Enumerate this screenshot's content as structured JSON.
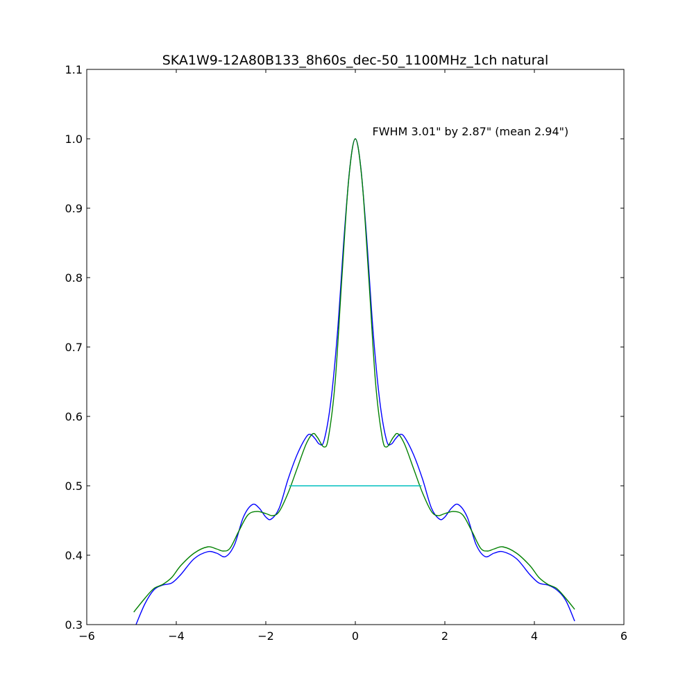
{
  "chart_data": {
    "type": "line",
    "title": "SKA1W9-12A80B133_8h60s_dec-50_1100MHz_1ch natural",
    "xlabel": "",
    "ylabel": "",
    "xlim": [
      -6,
      6
    ],
    "ylim": [
      0.3,
      1.1
    ],
    "xticks": [
      -6,
      -4,
      -2,
      0,
      2,
      4,
      6
    ],
    "xtick_labels": [
      "−6",
      "−4",
      "−2",
      "0",
      "2",
      "4",
      "6"
    ],
    "yticks": [
      0.3,
      0.4,
      0.5,
      0.6,
      0.7,
      0.8,
      0.9,
      1.0,
      1.1
    ],
    "ytick_labels": [
      "0.3",
      "0.4",
      "0.5",
      "0.6",
      "0.7",
      "0.8",
      "0.9",
      "1.0",
      "1.1"
    ],
    "grid": false,
    "annotation": {
      "text": "FWHM 3.01\" by 2.87\" (mean 2.94\")",
      "x": 0.38,
      "y": 1.005
    },
    "series": [
      {
        "color": "#0000ff",
        "points": [
          [
            -4.9,
            0.3
          ],
          [
            -4.7,
            0.33
          ],
          [
            -4.5,
            0.35
          ],
          [
            -4.3,
            0.357
          ],
          [
            -4.1,
            0.36
          ],
          [
            -3.9,
            0.372
          ],
          [
            -3.6,
            0.395
          ],
          [
            -3.3,
            0.405
          ],
          [
            -3.1,
            0.403
          ],
          [
            -2.9,
            0.398
          ],
          [
            -2.7,
            0.415
          ],
          [
            -2.5,
            0.455
          ],
          [
            -2.3,
            0.473
          ],
          [
            -2.15,
            0.468
          ],
          [
            -2.0,
            0.455
          ],
          [
            -1.88,
            0.452
          ],
          [
            -1.7,
            0.468
          ],
          [
            -1.5,
            0.51
          ],
          [
            -1.3,
            0.545
          ],
          [
            -1.1,
            0.57
          ],
          [
            -1.0,
            0.574
          ],
          [
            -0.9,
            0.568
          ],
          [
            -0.8,
            0.56
          ],
          [
            -0.7,
            0.565
          ],
          [
            -0.55,
            0.62
          ],
          [
            -0.4,
            0.72
          ],
          [
            -0.25,
            0.86
          ],
          [
            -0.12,
            0.96
          ],
          [
            0.0,
            1.0
          ],
          [
            0.12,
            0.96
          ],
          [
            0.25,
            0.86
          ],
          [
            0.4,
            0.72
          ],
          [
            0.55,
            0.62
          ],
          [
            0.7,
            0.565
          ],
          [
            0.8,
            0.56
          ],
          [
            0.9,
            0.568
          ],
          [
            1.0,
            0.574
          ],
          [
            1.1,
            0.57
          ],
          [
            1.3,
            0.545
          ],
          [
            1.5,
            0.51
          ],
          [
            1.7,
            0.468
          ],
          [
            1.88,
            0.452
          ],
          [
            2.0,
            0.455
          ],
          [
            2.15,
            0.468
          ],
          [
            2.3,
            0.473
          ],
          [
            2.5,
            0.455
          ],
          [
            2.7,
            0.415
          ],
          [
            2.9,
            0.398
          ],
          [
            3.1,
            0.403
          ],
          [
            3.3,
            0.405
          ],
          [
            3.6,
            0.395
          ],
          [
            3.9,
            0.372
          ],
          [
            4.1,
            0.36
          ],
          [
            4.3,
            0.357
          ],
          [
            4.5,
            0.35
          ],
          [
            4.7,
            0.335
          ],
          [
            4.9,
            0.305
          ]
        ]
      },
      {
        "color": "#008000",
        "points": [
          [
            -4.95,
            0.318
          ],
          [
            -4.7,
            0.338
          ],
          [
            -4.5,
            0.352
          ],
          [
            -4.3,
            0.358
          ],
          [
            -4.1,
            0.368
          ],
          [
            -3.9,
            0.385
          ],
          [
            -3.6,
            0.403
          ],
          [
            -3.3,
            0.412
          ],
          [
            -3.1,
            0.409
          ],
          [
            -2.95,
            0.406
          ],
          [
            -2.8,
            0.41
          ],
          [
            -2.6,
            0.435
          ],
          [
            -2.4,
            0.458
          ],
          [
            -2.2,
            0.463
          ],
          [
            -2.0,
            0.46
          ],
          [
            -1.85,
            0.457
          ],
          [
            -1.7,
            0.463
          ],
          [
            -1.5,
            0.49
          ],
          [
            -1.3,
            0.525
          ],
          [
            -1.1,
            0.56
          ],
          [
            -0.95,
            0.575
          ],
          [
            -0.85,
            0.57
          ],
          [
            -0.7,
            0.556
          ],
          [
            -0.6,
            0.57
          ],
          [
            -0.45,
            0.65
          ],
          [
            -0.3,
            0.8
          ],
          [
            -0.15,
            0.94
          ],
          [
            0.0,
            1.0
          ],
          [
            0.15,
            0.94
          ],
          [
            0.3,
            0.8
          ],
          [
            0.45,
            0.65
          ],
          [
            0.6,
            0.57
          ],
          [
            0.7,
            0.556
          ],
          [
            0.85,
            0.57
          ],
          [
            0.95,
            0.575
          ],
          [
            1.1,
            0.56
          ],
          [
            1.3,
            0.525
          ],
          [
            1.5,
            0.49
          ],
          [
            1.7,
            0.463
          ],
          [
            1.85,
            0.457
          ],
          [
            2.0,
            0.46
          ],
          [
            2.2,
            0.463
          ],
          [
            2.4,
            0.458
          ],
          [
            2.6,
            0.435
          ],
          [
            2.8,
            0.41
          ],
          [
            2.95,
            0.406
          ],
          [
            3.1,
            0.409
          ],
          [
            3.3,
            0.412
          ],
          [
            3.6,
            0.403
          ],
          [
            3.9,
            0.385
          ],
          [
            4.1,
            0.368
          ],
          [
            4.3,
            0.358
          ],
          [
            4.5,
            0.352
          ],
          [
            4.7,
            0.338
          ],
          [
            4.9,
            0.322
          ]
        ]
      },
      {
        "color": "#00bfbf",
        "points": [
          [
            -1.48,
            0.5
          ],
          [
            1.48,
            0.5
          ]
        ]
      }
    ]
  }
}
